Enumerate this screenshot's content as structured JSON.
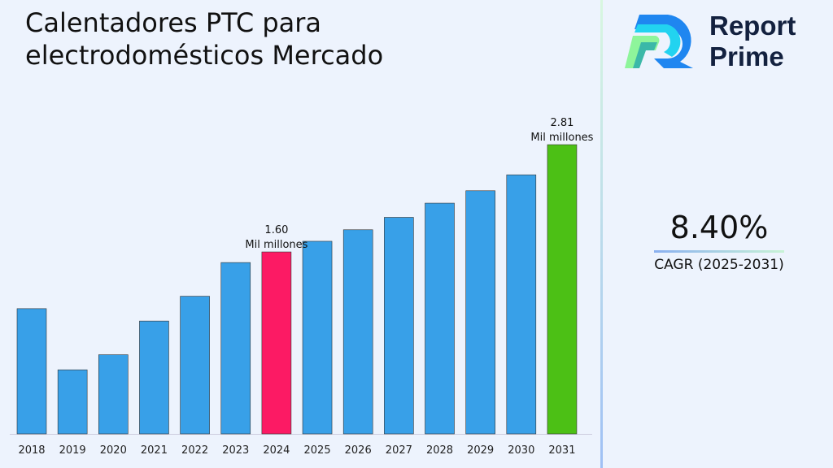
{
  "title": "Calentadores PTC para electrodomésticos Mercado",
  "logo": {
    "line1": "Report",
    "line2": "Prime"
  },
  "cagr": {
    "value": "8.40%",
    "label": "CAGR (2025-2031)"
  },
  "colors": {
    "bar": "#38a0e8",
    "highlight": "#fc1a64",
    "final": "#4cc015"
  },
  "chart_data": {
    "type": "bar",
    "title": "Calentadores PTC para electrodomésticos Mercado",
    "categories": [
      "2018",
      "2019",
      "2020",
      "2021",
      "2022",
      "2023",
      "2024",
      "2025",
      "2026",
      "2027",
      "2028",
      "2029",
      "2030",
      "2031"
    ],
    "values": [
      0.96,
      0.27,
      0.44,
      0.82,
      1.1,
      1.48,
      1.6,
      1.72,
      1.85,
      1.99,
      2.15,
      2.29,
      2.47,
      2.81
    ],
    "unit": "Mil millones",
    "annotations": [
      {
        "index": 6,
        "value": "1.60",
        "unit": "Mil millones"
      },
      {
        "index": 13,
        "value": "2.81",
        "unit": "Mil millones"
      }
    ],
    "xlabel": "",
    "ylabel": "",
    "grid": false
  }
}
